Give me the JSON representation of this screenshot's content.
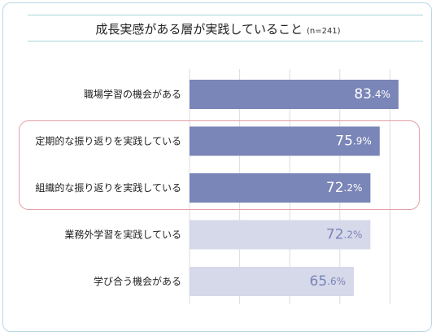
{
  "header": {
    "title": "成長実感がある層が実践していること",
    "sample": "(n=241)"
  },
  "chart_data": {
    "type": "bar",
    "orientation": "horizontal",
    "title": "成長実感がある層が実践していること",
    "sample_size": "(n=241)",
    "categories": [
      "職場学習の機会がある",
      "定期的な振り返りを実践している",
      "組織的な振り返りを実践している",
      "業務外学習を実践している",
      "学び合う機会がある"
    ],
    "values": [
      83.4,
      75.9,
      72.2,
      72.2,
      65.6
    ],
    "value_labels": [
      "83.4%",
      "75.9%",
      "72.2%",
      "72.2%",
      "65.6%"
    ],
    "emphasis": [
      "strong",
      "strong",
      "strong",
      "light",
      "light"
    ],
    "highlighted_categories": [
      "定期的な振り返りを実践している",
      "組織的な振り返りを実践している"
    ],
    "xlim": [
      0,
      100
    ],
    "grid": true,
    "legend": "none",
    "colors": {
      "strong_bar": "#7a85b8",
      "light_bar": "#d6d9ea",
      "strong_label": "#ffffff",
      "light_label": "#7a85b8",
      "highlight_border": "#e4a0a7",
      "frame_border": "#b9d8e6",
      "title_rule": "#a9d4da",
      "gridline": "#dcdcdc"
    }
  }
}
